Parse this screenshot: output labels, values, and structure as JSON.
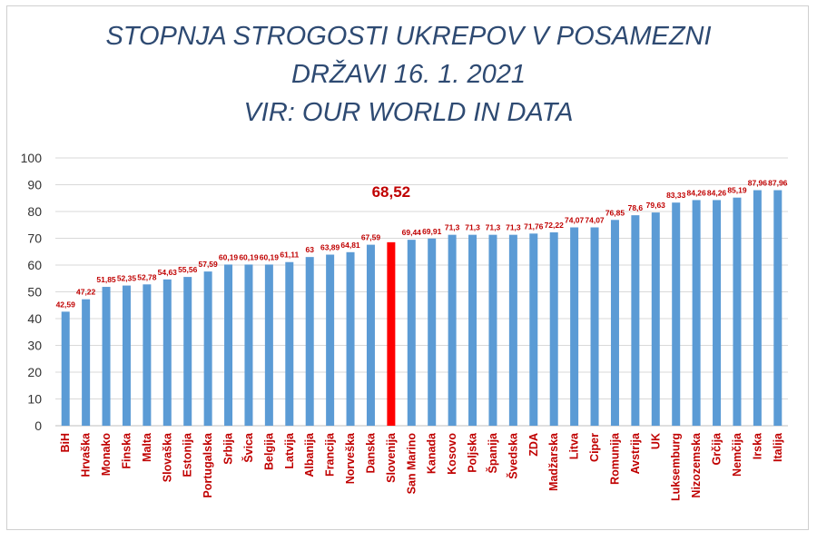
{
  "chart_data": {
    "type": "bar",
    "title_lines": [
      "STOPNJA STROGOSTI UKREPOV V POSAMEZNI",
      "DRŽAVI 16. 1. 2021",
      "VIR: OUR WORLD IN DATA"
    ],
    "categories": [
      "BiH",
      "Hrvaška",
      "Monako",
      "Finska",
      "Malta",
      "Slovaška",
      "Estonija",
      "Portugalska",
      "Srbija",
      "Švica",
      "Belgija",
      "Latvija",
      "Albanija",
      "Francija",
      "Norveška",
      "Danska",
      "Slovenija",
      "San Marino",
      "Kanada",
      "Kosovo",
      "Poljska",
      "Španija",
      "Švedska",
      "ZDA",
      "Madžarska",
      "Litva",
      "Ciper",
      "Romunija",
      "Avstrija",
      "UK",
      "Luksemburg",
      "Nizozemska",
      "Grčija",
      "Nemčija",
      "Irska",
      "Italija"
    ],
    "values": [
      42.59,
      47.22,
      51.85,
      52.35,
      52.78,
      54.63,
      55.56,
      57.59,
      60.19,
      60.19,
      60.19,
      61.11,
      63,
      63.89,
      64.81,
      67.59,
      68.52,
      69.44,
      69.91,
      71.3,
      71.3,
      71.3,
      71.3,
      71.76,
      72.22,
      74.07,
      74.07,
      76.85,
      78.6,
      79.63,
      83.33,
      84.26,
      84.26,
      85.19,
      87.96,
      87.96
    ],
    "data_labels": [
      "42,59",
      "47,22",
      "51,85",
      "52,35",
      "52,78",
      "54,63",
      "55,56",
      "57,59",
      "60,19",
      "60,19",
      "60,19",
      "61,11",
      "63",
      "63,89",
      "64,81",
      "67,59",
      "68,52",
      "69,44",
      "69,91",
      "71,3",
      "71,3",
      "71,3",
      "71,3",
      "71,76",
      "72,22",
      "74,07",
      "74,07",
      "76,85",
      "78,6",
      "79,63",
      "83,33",
      "84,26",
      "84,26",
      "85,19",
      "87,96",
      "87,96"
    ],
    "highlight_index": 16,
    "ylim": [
      0,
      100
    ],
    "yticks": [
      "0",
      "10",
      "20",
      "30",
      "40",
      "50",
      "60",
      "70",
      "80",
      "90",
      "100"
    ],
    "grid": true,
    "colors": {
      "bar": "#5b9bd5",
      "highlight": "#ff0000",
      "label": "#c00000",
      "title": "#2e4a72",
      "grid": "#d9d9d9"
    }
  }
}
